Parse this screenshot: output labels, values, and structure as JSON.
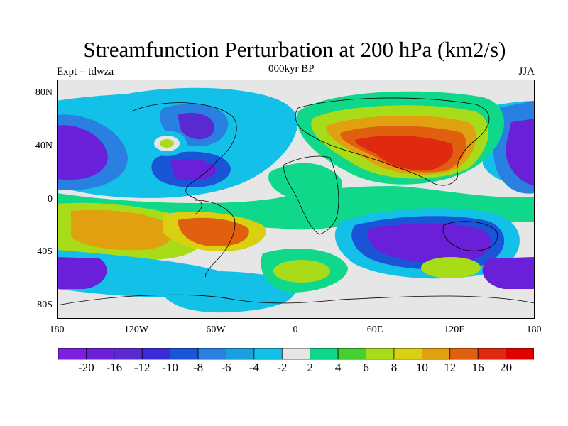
{
  "title": "Streamfunction Perturbation at 200 hPa (km2/s)",
  "experiment": "Expt = tdwza",
  "period": "000kyr BP",
  "season": "JJA",
  "y_ticks": [
    "80N",
    "40N",
    "0",
    "40S",
    "80S"
  ],
  "x_ticks": [
    "180",
    "120W",
    "60W",
    "0",
    "60E",
    "120E",
    "180"
  ],
  "colorbar": {
    "labels": [
      "-20",
      "-16",
      "-12",
      "-10",
      "-8",
      "-6",
      "-4",
      "-2",
      "2",
      "4",
      "6",
      "8",
      "10",
      "12",
      "16",
      "20"
    ],
    "colors": [
      "#7b1fe0",
      "#6a1fd8",
      "#5a2ad0",
      "#3a2ad8",
      "#1a55d8",
      "#2a80e0",
      "#1aa0e0",
      "#12c0e8",
      "#e6e6e6",
      "#10d88a",
      "#44d030",
      "#a8dc18",
      "#d8d010",
      "#e0a010",
      "#e06010",
      "#e02a10",
      "#e00000"
    ]
  },
  "map": {
    "background": "#e6e6e6",
    "lat_range": [
      -90,
      90
    ],
    "lon_range": [
      -180,
      180
    ]
  }
}
